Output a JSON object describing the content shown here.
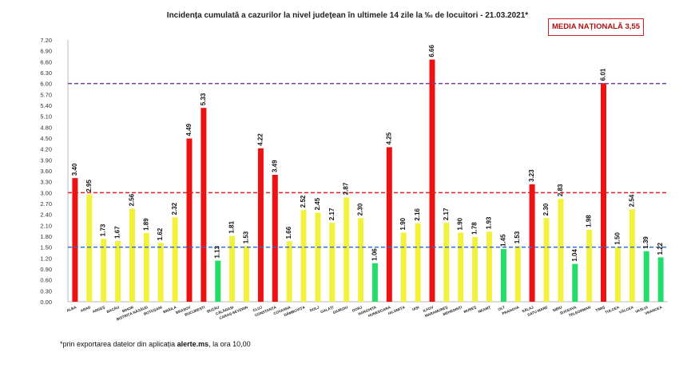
{
  "title": "Incidența cumulată a cazurilor la nivel județean în ultimele 14 zile la ‰ de locuitori - 21.03.2021*",
  "media_label": "MEDIA NAȚIONALĂ 3,55",
  "footnote": {
    "prefix": "*prin exportarea datelor din aplicația ",
    "source": "alerte.ms",
    "suffix": ", la ora 10,00"
  },
  "chart_data": {
    "type": "bar",
    "title": "Incidența cumulată a cazurilor la nivel județean în ultimele 14 zile la ‰ de locuitori - 21.03.2021*",
    "xlabel": "",
    "ylabel": "",
    "ylim": [
      0,
      7.2
    ],
    "yticks": [
      "0.00",
      "0.30",
      "0.60",
      "0.90",
      "1.20",
      "1.50",
      "1.80",
      "2.10",
      "2.40",
      "2.70",
      "3.00",
      "3.30",
      "3.60",
      "3.90",
      "4.20",
      "4.50",
      "4.80",
      "5.10",
      "5.40",
      "5.70",
      "6.00",
      "6.30",
      "6.60",
      "6.90",
      "7.20"
    ],
    "grid": false,
    "categories": [
      "ALBA",
      "ARAD",
      "ARGEȘ",
      "BACĂU",
      "BIHOR",
      "BISTRIȚA NĂSĂUD",
      "BOTOȘANI",
      "BRĂILA",
      "BRAȘOV",
      "BUCUREȘTI",
      "BUZĂU",
      "CĂLĂRAȘI",
      "CARAȘ-SEVERIN",
      "CLUJ",
      "CONSTANȚA",
      "COVASNA",
      "DÂMBOVIȚA",
      "DOLJ",
      "GALAȚI",
      "GIURGIU",
      "GORJ",
      "HARGHITA",
      "HUNEDOARA",
      "IALOMIȚA",
      "IAȘI",
      "ILFOV",
      "MARAMUREȘ",
      "MEHEDINȚI",
      "MUREȘ",
      "NEAMȚ",
      "OLT",
      "PRAHOVA",
      "SĂLAJ",
      "SATU MARE",
      "SIBIU",
      "SUCEAVA",
      "TELEORMAN",
      "TIMIȘ",
      "TULCEA",
      "VÂLCEA",
      "VASLUI",
      "VRANCEA"
    ],
    "value_labels": [
      "3.40",
      "2.95",
      "1.73",
      "1.67",
      "2.56",
      "1.89",
      "1.62",
      "2.32",
      "4.49",
      "5.33",
      "1.13",
      "1.81",
      "1.53",
      "4.22",
      "3.49",
      "1.66",
      "2.52",
      "2.45",
      "2.17",
      "2.87",
      "2.30",
      "1.06",
      "4.25",
      "1.90",
      "2.16",
      "6.66",
      "2.17",
      "1.90",
      "1.78",
      "1.93",
      "1.45",
      "1.53",
      "3.23",
      "2.30",
      "2.83",
      "1.04",
      "1.98",
      "6.01",
      "1.50",
      "2.54",
      "1.39",
      "1.22"
    ],
    "values": [
      3.4,
      2.95,
      1.73,
      1.67,
      2.56,
      1.89,
      1.62,
      2.32,
      4.49,
      5.33,
      1.13,
      1.81,
      1.53,
      4.22,
      3.49,
      1.66,
      2.52,
      2.45,
      2.17,
      2.87,
      2.3,
      1.06,
      4.25,
      1.9,
      2.16,
      6.66,
      2.17,
      1.9,
      1.78,
      1.93,
      1.45,
      1.53,
      3.23,
      2.3,
      2.83,
      1.04,
      1.98,
      6.01,
      1.5,
      2.54,
      1.39,
      1.22
    ],
    "colors": [
      "red",
      "yellow",
      "yellow",
      "yellow",
      "yellow",
      "yellow",
      "yellow",
      "yellow",
      "red",
      "red",
      "green",
      "yellow",
      "yellow",
      "red",
      "red",
      "yellow",
      "yellow",
      "yellow",
      "yellow",
      "yellow",
      "yellow",
      "green",
      "red",
      "yellow",
      "yellow",
      "red",
      "yellow",
      "yellow",
      "yellow",
      "yellow",
      "green",
      "yellow",
      "red",
      "yellow",
      "yellow",
      "green",
      "yellow",
      "red",
      "yellow",
      "yellow",
      "green",
      "green"
    ],
    "palette": {
      "red": "#ee1111",
      "yellow": "#f2f23c",
      "green": "#22dd6a"
    },
    "thresholds": [
      {
        "value": 6.0,
        "color": "#7a3ea0"
      },
      {
        "value": 3.0,
        "color": "#dd2222"
      },
      {
        "value": 1.5,
        "color": "#2e6fd4"
      }
    ]
  }
}
